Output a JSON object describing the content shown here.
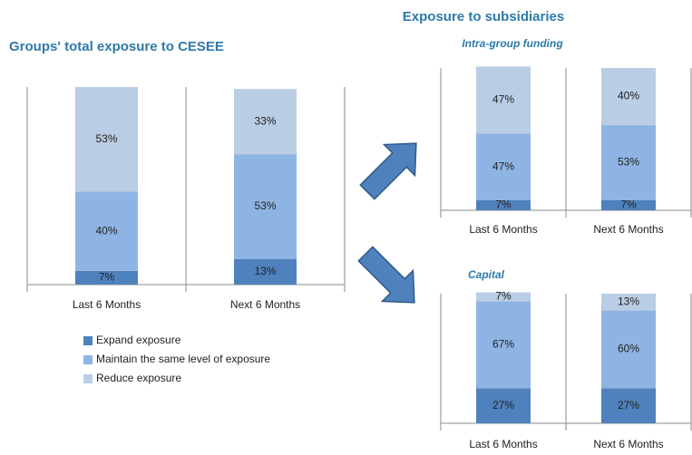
{
  "heading": "Exposure to subsidiaries",
  "chart_data": [
    {
      "type": "stacked_bar",
      "title": "Groups' total exposure to CESEE",
      "categories": [
        "Last 6 Months",
        "Next 6 Months"
      ],
      "ylim": [
        0,
        100
      ],
      "series": [
        {
          "name": "Expand exposure",
          "color": "#4f81bd",
          "values": [
            7,
            13
          ],
          "value_labels": [
            "7%",
            "13%"
          ]
        },
        {
          "name": "Maintain the same level of exposure",
          "color": "#8eb4e3",
          "values": [
            40,
            53
          ],
          "value_labels": [
            "40%",
            "53%"
          ]
        },
        {
          "name": "Reduce exposure",
          "color": "#b9cde5",
          "values": [
            53,
            33
          ],
          "value_labels": [
            "53%",
            "33%"
          ]
        }
      ]
    },
    {
      "type": "stacked_bar",
      "title": "Intra-group funding",
      "categories": [
        "Last 6 Months",
        "Next 6 Months"
      ],
      "ylim": [
        0,
        100
      ],
      "series": [
        {
          "color": "#4f81bd",
          "values": [
            7,
            7
          ],
          "value_labels": [
            "7%",
            "7%"
          ]
        },
        {
          "color": "#8eb4e3",
          "values": [
            47,
            53
          ],
          "value_labels": [
            "47%",
            "53%"
          ]
        },
        {
          "color": "#b9cde5",
          "values": [
            47,
            40
          ],
          "value_labels": [
            "47%",
            "40%"
          ]
        }
      ]
    },
    {
      "type": "stacked_bar",
      "title": "Capital",
      "categories": [
        "Last 6 Months",
        "Next 6 Months"
      ],
      "ylim": [
        0,
        100
      ],
      "series": [
        {
          "color": "#4f81bd",
          "values": [
            27,
            27
          ],
          "value_labels": [
            "27%",
            "27%"
          ]
        },
        {
          "color": "#8eb4e3",
          "values": [
            67,
            60
          ],
          "value_labels": [
            "67%",
            "60%"
          ]
        },
        {
          "color": "#b9cde5",
          "values": [
            7,
            13
          ],
          "value_labels": [
            "7%",
            "13%"
          ]
        }
      ]
    }
  ]
}
